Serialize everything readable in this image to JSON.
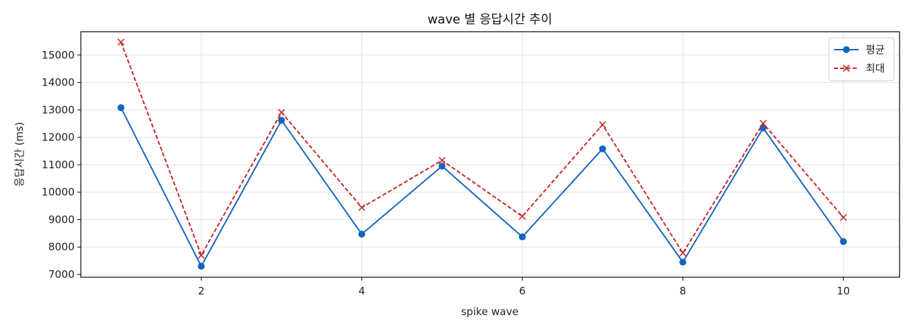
{
  "chart_data": {
    "type": "line",
    "title": "wave 별 응답시간 추이",
    "xlabel": "spike wave",
    "ylabel": "응답시간 (ms)",
    "x": [
      1,
      2,
      3,
      4,
      5,
      6,
      7,
      8,
      9,
      10
    ],
    "xlim": [
      0.5,
      10.7
    ],
    "ylim": [
      6900,
      15850
    ],
    "xticks": [
      2,
      4,
      6,
      8,
      10
    ],
    "yticks": [
      7000,
      8000,
      9000,
      10000,
      11000,
      12000,
      13000,
      14000,
      15000
    ],
    "grid": true,
    "legend_position": "top-right",
    "series": [
      {
        "name": "평균",
        "color": "#1565c0",
        "line_style": "solid",
        "marker": "circle",
        "values": [
          13080,
          7300,
          12620,
          8470,
          10950,
          8370,
          11580,
          7450,
          12340,
          8200
        ]
      },
      {
        "name": "최대",
        "color": "#c62828",
        "line_style": "dashed",
        "marker": "x",
        "values": [
          15470,
          7700,
          12910,
          9440,
          11160,
          9120,
          12460,
          7780,
          12510,
          9080
        ]
      }
    ]
  }
}
